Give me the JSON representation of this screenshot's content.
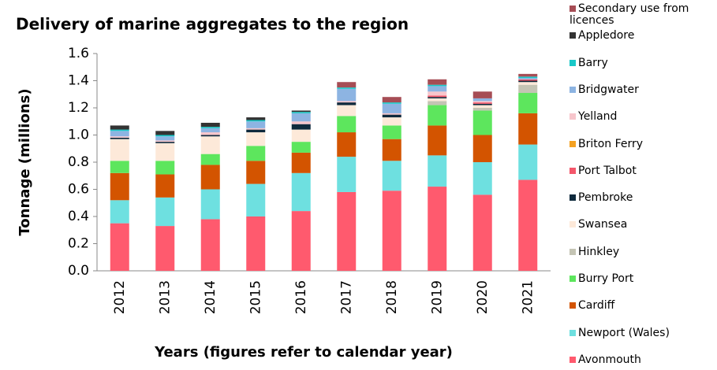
{
  "chart_data": {
    "type": "stacked_bar",
    "title": "Delivery of marine aggregates to the region",
    "x_label": "Years (figures refer to calendar year)",
    "y_label": "Tonnage (millions)",
    "categories": [
      "2012",
      "2013",
      "2014",
      "2015",
      "2016",
      "2017",
      "2018",
      "2019",
      "2020",
      "2021"
    ],
    "ylim": [
      0,
      1.6
    ],
    "yticks": [
      {
        "value": 0,
        "label": "0.0"
      },
      0.2,
      0.4,
      0.6,
      0.8,
      {
        "value": 1,
        "label": "1.0"
      },
      1.2,
      1.4,
      1.6
    ],
    "series": [
      {
        "name": "Avonmouth",
        "color": "#ff5a6e",
        "values": [
          0.35,
          0.33,
          0.38,
          0.4,
          0.44,
          0.58,
          0.59,
          0.62,
          0.56,
          0.67
        ]
      },
      {
        "name": "Newport (Wales)",
        "color": "#6ee0e0",
        "values": [
          0.17,
          0.21,
          0.22,
          0.24,
          0.28,
          0.26,
          0.22,
          0.23,
          0.24,
          0.26
        ]
      },
      {
        "name": "Cardiff",
        "color": "#d35400",
        "values": [
          0.2,
          0.17,
          0.18,
          0.17,
          0.15,
          0.18,
          0.16,
          0.22,
          0.2,
          0.23
        ]
      },
      {
        "name": "Burry Port",
        "color": "#5de65d",
        "values": [
          0.09,
          0.1,
          0.08,
          0.11,
          0.08,
          0.12,
          0.1,
          0.15,
          0.18,
          0.15
        ]
      },
      {
        "name": "Hinkley",
        "color": "#c4c4b4",
        "values": [
          0,
          0,
          0,
          0,
          0,
          0,
          0,
          0.03,
          0.02,
          0.06
        ]
      },
      {
        "name": "Swansea",
        "color": "#fde9d9",
        "values": [
          0.16,
          0.13,
          0.13,
          0.1,
          0.09,
          0.08,
          0.06,
          0.02,
          0.02,
          0.02
        ]
      },
      {
        "name": "Pembroke",
        "color": "#0f2a3d",
        "values": [
          0.01,
          0.01,
          0.01,
          0.02,
          0.04,
          0.02,
          0.02,
          0.01,
          0.01,
          0.01
        ]
      },
      {
        "name": "Port Talbot",
        "color": "#f4576b",
        "values": [
          0,
          0,
          0,
          0,
          0,
          0,
          0,
          0.01,
          0.01,
          0.01
        ]
      },
      {
        "name": "Briton Ferry",
        "color": "#f4a121",
        "values": [
          0,
          0,
          0,
          0,
          0,
          0,
          0,
          0,
          0,
          0
        ]
      },
      {
        "name": "Yelland",
        "color": "#f7c6cc",
        "values": [
          0.01,
          0.01,
          0.02,
          0.01,
          0.02,
          0.01,
          0.01,
          0.03,
          0.01,
          0
        ]
      },
      {
        "name": "Bridgwater",
        "color": "#8db4e2",
        "values": [
          0.04,
          0.03,
          0.03,
          0.05,
          0.06,
          0.09,
          0.07,
          0.04,
          0.02,
          0.01
        ]
      },
      {
        "name": "Barry",
        "color": "#19c8c8",
        "values": [
          0.01,
          0.01,
          0.01,
          0.01,
          0.01,
          0.01,
          0.01,
          0.01,
          0,
          0.01
        ]
      },
      {
        "name": "Appledore",
        "color": "#333333",
        "values": [
          0.03,
          0.03,
          0.03,
          0.02,
          0.01,
          0,
          0,
          0,
          0,
          0
        ]
      },
      {
        "name": "Secondary use from licences",
        "color": "#a64d55",
        "values": [
          0,
          0,
          0,
          0,
          0,
          0.04,
          0.04,
          0.04,
          0.05,
          0.02
        ]
      }
    ]
  }
}
